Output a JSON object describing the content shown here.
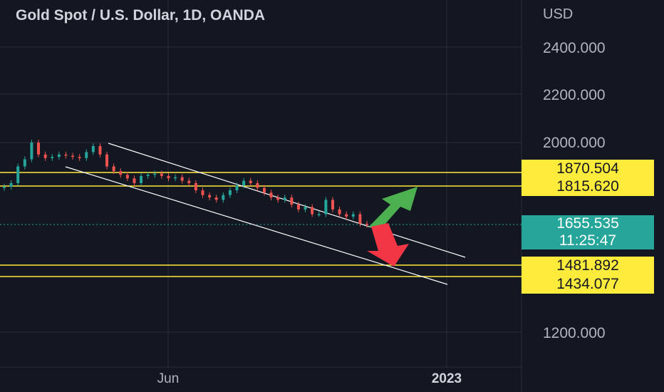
{
  "header": {
    "title": "Gold Spot / U.S. Dollar, 1D, OANDA"
  },
  "price_axis": {
    "currency": "USD",
    "ticks": [
      "2400.000",
      "2200.000",
      "2000.000",
      "1200.000"
    ]
  },
  "time_axis": {
    "labels": [
      "Jun",
      "2023"
    ]
  },
  "price_labels": {
    "level_1": "1870.504",
    "level_2": "1815.620",
    "current_price": "1655.535",
    "countdown": "11:25:47",
    "level_3": "1481.892",
    "level_4": "1434.077"
  },
  "colors": {
    "background": "#131722",
    "bull": "#26a69a",
    "bear": "#ef5350",
    "level_line": "#ffeb3b",
    "channel": "#ffffff",
    "up_arrow": "#4caf50",
    "down_arrow": "#f23645"
  },
  "chart_data": {
    "type": "candlestick",
    "symbol": "Gold Spot / U.S. Dollar",
    "interval": "1D",
    "source": "OANDA",
    "close_series": [
      1815,
      1830,
      1900,
      1930,
      2000,
      1950,
      1935,
      1940,
      1950,
      1945,
      1940,
      1935,
      1960,
      1985,
      1950,
      1900,
      1880,
      1865,
      1850,
      1830,
      1860,
      1865,
      1870,
      1860,
      1850,
      1855,
      1840,
      1830,
      1800,
      1780,
      1770,
      1760,
      1780,
      1800,
      1820,
      1840,
      1830,
      1810,
      1790,
      1770,
      1760,
      1770,
      1740,
      1720,
      1730,
      1700,
      1700,
      1760,
      1720,
      1700,
      1690,
      1700,
      1660,
      1655
    ],
    "horizontal_levels": [
      1870.504,
      1815.62,
      1481.892,
      1434.077
    ],
    "current_price": 1655.535,
    "annotations": [
      "descending channel",
      "up arrow",
      "down arrow"
    ]
  }
}
